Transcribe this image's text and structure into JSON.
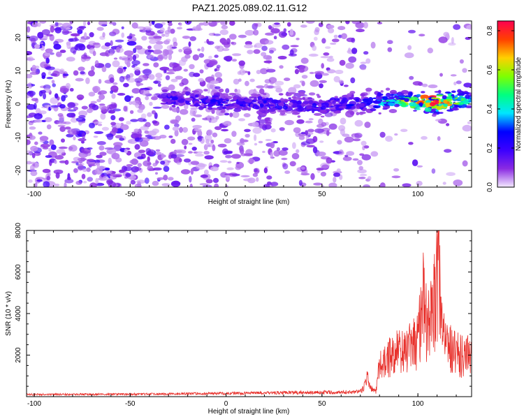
{
  "title": "PAZ1.2025.089.02.11.G12",
  "chart_data": [
    {
      "type": "heatmap",
      "xlabel": "Height of straight line (km)",
      "ylabel": "Frequency (Hz)",
      "xlim": [
        -104,
        128
      ],
      "ylim": [
        -25,
        25
      ],
      "xticks": [
        -100,
        -50,
        0,
        50,
        100
      ],
      "yticks": [
        -20,
        -10,
        0,
        10,
        20
      ],
      "colorbar": {
        "label": "Normalized spectral amplitude",
        "range": [
          0.0,
          0.85
        ],
        "ticks": [
          0.0,
          0.2,
          0.4,
          0.6,
          0.8
        ],
        "colors": [
          "#f4eaff",
          "#8a2be2",
          "#3b00ff",
          "#0000ff",
          "#00e5ff",
          "#00ff80",
          "#7fff00",
          "#ffd000",
          "#ff4000",
          "#ff0050"
        ]
      },
      "ridge": {
        "x": [
          -25,
          0,
          25,
          50,
          75,
          90,
          100,
          110,
          120,
          128
        ],
        "frequency": [
          1.5,
          0.5,
          0.0,
          -0.5,
          0.5,
          1.0,
          0.5,
          0.5,
          1.0,
          1.0
        ],
        "amplitude": [
          0.22,
          0.25,
          0.25,
          0.22,
          0.3,
          0.55,
          0.7,
          0.85,
          0.6,
          0.4
        ]
      }
    },
    {
      "type": "line",
      "xlabel": "Height of straight line (km)",
      "ylabel": "SNR (10 * v/v)",
      "xlim": [
        -104,
        128
      ],
      "ylim": [
        0,
        8000
      ],
      "xticks": [
        -100,
        -50,
        0,
        50,
        100
      ],
      "yticks": [
        2000,
        4000,
        6000,
        8000
      ],
      "color": "#e8312c",
      "series": [
        {
          "x": [
            -104,
            -50,
            0,
            50,
            70,
            73,
            74,
            75,
            78,
            80,
            82,
            85,
            90,
            95,
            100,
            103,
            105,
            107,
            110,
            111,
            112,
            115,
            120,
            125,
            128
          ],
          "values": [
            100,
            110,
            150,
            200,
            220,
            600,
            1100,
            400,
            300,
            1800,
            2000,
            2600,
            2700,
            2900,
            3500,
            6400,
            4000,
            5200,
            6800,
            8000,
            4800,
            3000,
            2700,
            2500,
            2400
          ]
        }
      ]
    }
  ]
}
